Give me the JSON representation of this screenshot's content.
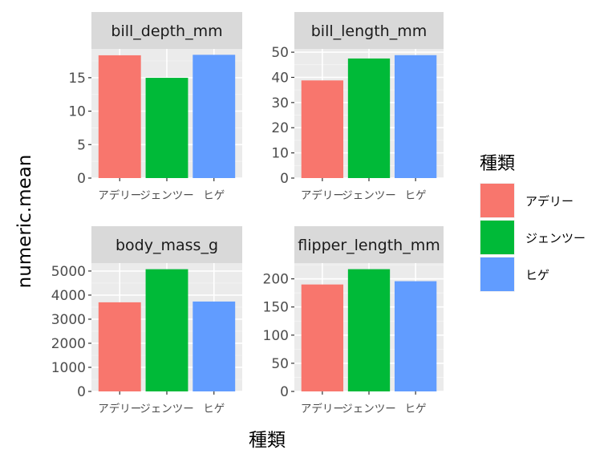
{
  "chart_data": {
    "type": "bar",
    "categories": [
      "アデリー",
      "ジェンツー",
      "ヒゲ"
    ],
    "xlabel": "種類",
    "ylabel": "numeric.mean",
    "legend": {
      "title": "種類",
      "placement": "right",
      "entries": [
        "アデリー",
        "ジェンツー",
        "ヒゲ"
      ]
    },
    "colors": [
      "#F8766D",
      "#00BA38",
      "#619CFF"
    ],
    "grid": true,
    "panels": [
      {
        "name": "bill_depth_mm",
        "values": [
          18.35,
          14.98,
          18.42
        ],
        "ylim": [
          0,
          19.3
        ],
        "yticks": [
          0,
          5,
          10,
          15
        ]
      },
      {
        "name": "bill_length_mm",
        "values": [
          38.79,
          47.5,
          48.83
        ],
        "ylim": [
          0,
          51.3
        ],
        "yticks": [
          0,
          10,
          20,
          30,
          40,
          50
        ]
      },
      {
        "name": "body_mass_g",
        "values": [
          3700.7,
          5076.0,
          3733.1
        ],
        "ylim": [
          0,
          5330
        ],
        "yticks": [
          0,
          1000,
          2000,
          3000,
          4000,
          5000
        ]
      },
      {
        "name": "flipper_length_mm",
        "values": [
          190,
          217.2,
          195.8
        ],
        "ylim": [
          0,
          228
        ],
        "yticks": [
          0,
          50,
          100,
          150,
          200
        ]
      }
    ]
  }
}
